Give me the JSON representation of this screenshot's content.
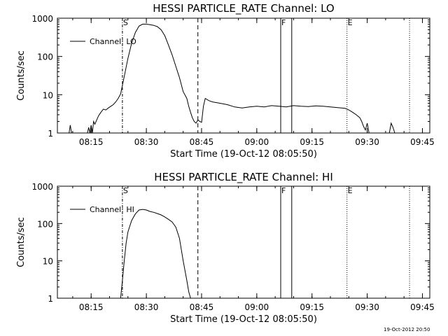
{
  "chart_data": [
    {
      "type": "line",
      "title": "HESSI PARTICLE_RATE Channel: LO",
      "xlabel": "Start Time (19-Oct-12 08:05:50)",
      "ylabel": "Counts/sec",
      "y_scale": "log",
      "ylim": [
        1,
        1000
      ],
      "xlim": [
        "08:05:50",
        "09:47:00"
      ],
      "x_ticks": [
        "08:15",
        "08:30",
        "08:45",
        "09:00",
        "09:15",
        "09:30",
        "09:45"
      ],
      "y_ticks": [
        "1",
        "10",
        "100",
        "1000"
      ],
      "legend": {
        "label": "Channel: LO",
        "position": "top-left"
      },
      "markers": [
        {
          "label": "S",
          "time": "08:23:30",
          "style": "dashdot"
        },
        {
          "label": "",
          "time": "08:44:00",
          "style": "dashed"
        },
        {
          "label": "F",
          "time": "09:06:30",
          "style": "solid"
        },
        {
          "label": "",
          "time": "09:09:30",
          "style": "solid"
        },
        {
          "label": "E",
          "time": "09:24:30",
          "style": "dotted"
        },
        {
          "label": "",
          "time": "09:41:30",
          "style": "dotted"
        }
      ],
      "series": [
        {
          "x": [
            "08:09:00",
            "08:09:20",
            "08:09:40",
            "08:10:00",
            "08:14:00",
            "08:14:20",
            "08:14:40",
            "08:15:00",
            "08:15:20",
            "08:15:40",
            "08:16:00",
            "08:17:00",
            "08:17:40",
            "08:18:20",
            "08:19:00",
            "08:19:40",
            "08:20:20",
            "08:21:00",
            "08:21:40",
            "08:22:20",
            "08:23:00",
            "08:24:00",
            "08:25:00",
            "08:26:00",
            "08:27:00",
            "08:28:00",
            "08:29:00",
            "08:30:00",
            "08:31:00",
            "08:32:00",
            "08:33:00",
            "08:34:00",
            "08:35:00",
            "08:36:00",
            "08:37:00",
            "08:38:00",
            "08:39:00",
            "08:40:00",
            "08:41:00",
            "08:41:30",
            "08:42:00",
            "08:42:30",
            "08:43:00",
            "08:43:30",
            "08:44:00",
            "08:44:30",
            "08:45:00",
            "08:45:30",
            "08:46:00",
            "08:47:00",
            "08:48:00",
            "08:50:00",
            "08:52:00",
            "08:54:00",
            "08:56:00",
            "08:58:00",
            "09:00:00",
            "09:02:00",
            "09:04:00",
            "09:06:00",
            "09:08:00",
            "09:10:00",
            "09:12:00",
            "09:14:00",
            "09:16:00",
            "09:18:00",
            "09:20:00",
            "09:22:00",
            "09:24:00",
            "09:25:00",
            "09:26:00",
            "09:27:00",
            "09:28:00",
            "09:28:30",
            "09:29:00",
            "09:29:30",
            "09:30:00",
            "09:30:30",
            "09:36:00",
            "09:36:30",
            "09:37:00",
            "09:37:30"
          ],
          "values": [
            1,
            1.6,
            1,
            1,
            1,
            1.4,
            1,
            1.6,
            1,
            2,
            1.7,
            2.8,
            3.5,
            4.2,
            4,
            4.5,
            5,
            5.5,
            6.5,
            8,
            10.5,
            30,
            90,
            220,
            420,
            620,
            700,
            700,
            680,
            650,
            600,
            500,
            350,
            200,
            110,
            55,
            28,
            12,
            8,
            5,
            3.5,
            2.5,
            2,
            1.8,
            2.2,
            2,
            1.9,
            5,
            8,
            7,
            6.5,
            6,
            5.5,
            4.8,
            4.5,
            4.8,
            5,
            4.8,
            5.2,
            5,
            4.8,
            5.2,
            5,
            4.9,
            5.1,
            5,
            4.8,
            4.6,
            4.4,
            4,
            3.5,
            3,
            2.5,
            2,
            1.5,
            1.2,
            1.8,
            1,
            1,
            1.8,
            1.4,
            1
          ]
        }
      ]
    },
    {
      "type": "line",
      "title": "HESSI PARTICLE_RATE Channel: HI",
      "xlabel": "Start Time (19-Oct-12 08:05:50)",
      "ylabel": "Counts/sec",
      "y_scale": "log",
      "ylim": [
        1,
        1000
      ],
      "xlim": [
        "08:05:50",
        "09:47:00"
      ],
      "x_ticks": [
        "08:15",
        "08:30",
        "08:45",
        "09:00",
        "09:15",
        "09:30",
        "09:45"
      ],
      "y_ticks": [
        "1",
        "10",
        "100",
        "1000"
      ],
      "legend": {
        "label": "Channel: HI",
        "position": "top-left"
      },
      "markers": [
        {
          "label": "S",
          "time": "08:23:30",
          "style": "dashdot"
        },
        {
          "label": "",
          "time": "08:44:00",
          "style": "dashed"
        },
        {
          "label": "F",
          "time": "09:06:30",
          "style": "solid"
        },
        {
          "label": "",
          "time": "09:09:30",
          "style": "solid"
        },
        {
          "label": "E",
          "time": "09:24:30",
          "style": "dotted"
        },
        {
          "label": "",
          "time": "09:41:30",
          "style": "dotted"
        }
      ],
      "series": [
        {
          "x": [
            "08:23:00",
            "08:23:30",
            "08:24:00",
            "08:24:30",
            "08:25:00",
            "08:26:00",
            "08:27:00",
            "08:28:00",
            "08:29:00",
            "08:30:00",
            "08:31:00",
            "08:32:00",
            "08:33:00",
            "08:34:00",
            "08:35:00",
            "08:36:00",
            "08:37:00",
            "08:38:00",
            "08:39:00",
            "08:40:00",
            "08:41:00",
            "08:41:30",
            "08:42:00"
          ],
          "values": [
            1,
            3,
            10,
            30,
            60,
            120,
            180,
            230,
            240,
            230,
            210,
            200,
            185,
            170,
            150,
            130,
            110,
            80,
            40,
            10,
            3,
            1.5,
            1
          ]
        }
      ]
    }
  ],
  "timestamp_label": "19-Oct-2012 20:50"
}
